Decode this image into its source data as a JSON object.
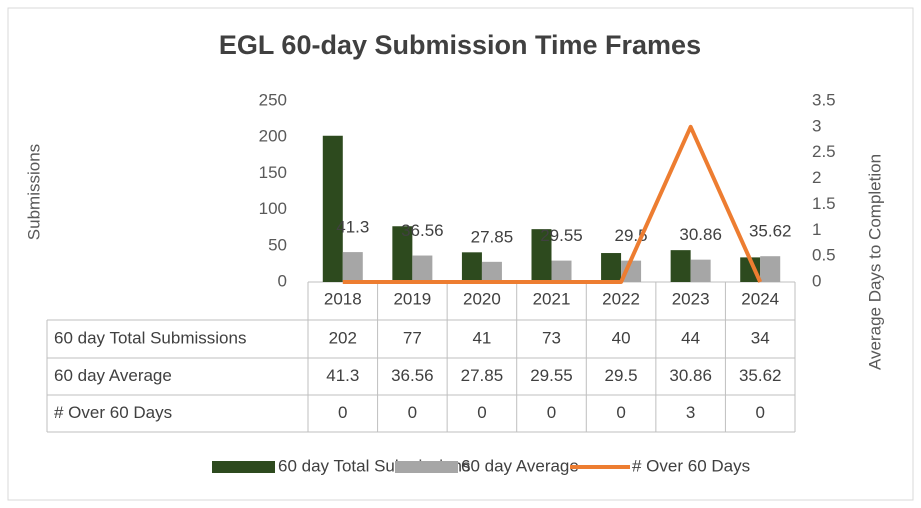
{
  "chart_data": {
    "type": "bar-line-table",
    "title": "EGL 60-day Submission Time Frames",
    "y_label": "Submissions",
    "y2_label": "Average Days to Completion",
    "categories": [
      "2018",
      "2019",
      "2020",
      "2021",
      "2022",
      "2023",
      "2024"
    ],
    "series": [
      {
        "name": "60 day Total Submissions",
        "type": "bar",
        "color": "#2d4a1e",
        "values": [
          202,
          77,
          41,
          73,
          40,
          44,
          34
        ]
      },
      {
        "name": "60 day Average",
        "type": "bar",
        "color": "#a6a6a6",
        "values": [
          41.3,
          36.56,
          27.85,
          29.55,
          29.5,
          30.86,
          35.62
        ],
        "data_labels": true
      },
      {
        "name": "# Over 60 Days",
        "type": "line",
        "axis": "y2",
        "color": "#ed7d31",
        "values": [
          0,
          0,
          0,
          0,
          0,
          3,
          0
        ]
      }
    ],
    "ylim": [
      0,
      250
    ],
    "yticks": [
      0,
      50,
      100,
      150,
      200,
      250
    ],
    "y2lim": [
      0,
      3.5
    ],
    "y2ticks": [
      0,
      0.5,
      1,
      1.5,
      2,
      2.5,
      3,
      3.5
    ],
    "grid": false,
    "data_table": true,
    "legend": "bottom"
  }
}
